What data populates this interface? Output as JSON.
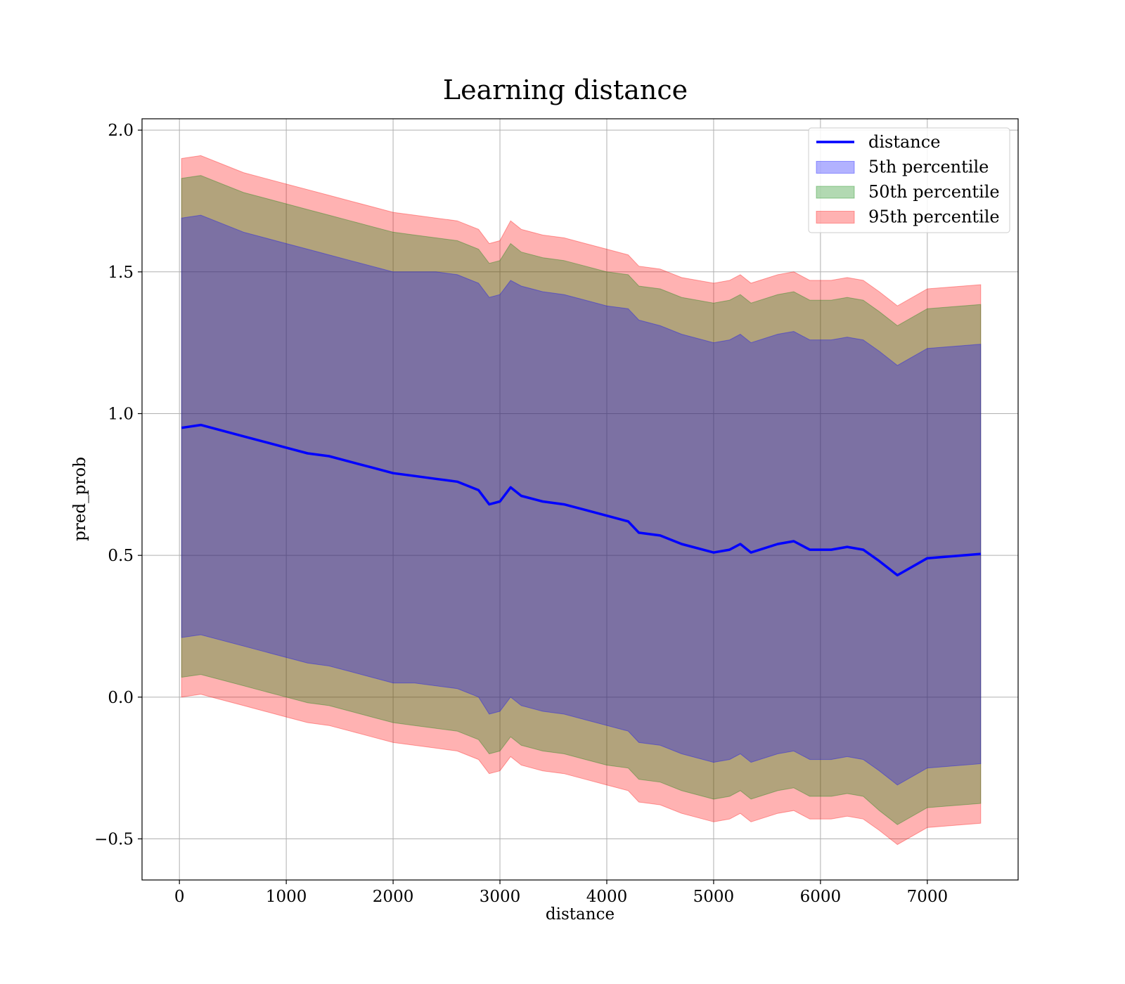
{
  "chart_data": {
    "type": "area",
    "title": "Learning distance",
    "xlabel": "distance",
    "ylabel": "pred_prob",
    "xlim": [
      -350,
      7850
    ],
    "ylim": [
      -0.645,
      2.04
    ],
    "xticks": [
      0,
      1000,
      2000,
      3000,
      4000,
      5000,
      6000,
      7000
    ],
    "yticks": [
      -0.5,
      0.0,
      0.5,
      1.0,
      1.5,
      2.0
    ],
    "ytick_labels": [
      "−0.5",
      "0.0",
      "0.5",
      "1.0",
      "1.5",
      "2.0"
    ],
    "grid": true,
    "legend_position": "top-right",
    "x": [
      20,
      200,
      400,
      600,
      800,
      1000,
      1200,
      1400,
      1600,
      1800,
      2000,
      2200,
      2400,
      2600,
      2800,
      2900,
      3000,
      3100,
      3200,
      3400,
      3600,
      3800,
      4000,
      4200,
      4300,
      4500,
      4700,
      5000,
      5150,
      5250,
      5350,
      5600,
      5750,
      5900,
      6100,
      6250,
      6400,
      6550,
      6720,
      7000,
      7500
    ],
    "series": [
      {
        "name": "distance",
        "kind": "line",
        "color": "#0000ff",
        "values": [
          0.95,
          0.96,
          0.94,
          0.92,
          0.9,
          0.88,
          0.86,
          0.85,
          0.83,
          0.81,
          0.79,
          0.78,
          0.77,
          0.76,
          0.73,
          0.68,
          0.69,
          0.74,
          0.71,
          0.69,
          0.68,
          0.66,
          0.64,
          0.62,
          0.58,
          0.57,
          0.54,
          0.51,
          0.52,
          0.54,
          0.51,
          0.54,
          0.55,
          0.52,
          0.52,
          0.53,
          0.52,
          0.48,
          0.43,
          0.49,
          0.505
        ]
      },
      {
        "name": "5th percentile",
        "kind": "band",
        "color": "#0000ff",
        "upper": [
          1.69,
          1.7,
          1.67,
          1.64,
          1.62,
          1.6,
          1.58,
          1.56,
          1.54,
          1.52,
          1.5,
          1.5,
          1.5,
          1.49,
          1.46,
          1.41,
          1.42,
          1.47,
          1.45,
          1.43,
          1.42,
          1.4,
          1.38,
          1.37,
          1.33,
          1.31,
          1.28,
          1.25,
          1.26,
          1.28,
          1.25,
          1.28,
          1.29,
          1.26,
          1.26,
          1.27,
          1.26,
          1.22,
          1.17,
          1.23,
          1.245
        ],
        "lower": [
          0.21,
          0.22,
          0.2,
          0.18,
          0.16,
          0.14,
          0.12,
          0.11,
          0.09,
          0.07,
          0.05,
          0.05,
          0.04,
          0.03,
          0.0,
          -0.06,
          -0.05,
          0.0,
          -0.03,
          -0.05,
          -0.06,
          -0.08,
          -0.1,
          -0.12,
          -0.16,
          -0.17,
          -0.2,
          -0.23,
          -0.22,
          -0.2,
          -0.23,
          -0.2,
          -0.19,
          -0.22,
          -0.22,
          -0.21,
          -0.22,
          -0.26,
          -0.31,
          -0.25,
          -0.235
        ]
      },
      {
        "name": "50th percentile",
        "kind": "band",
        "color": "#008000",
        "upper": [
          1.83,
          1.84,
          1.81,
          1.78,
          1.76,
          1.74,
          1.72,
          1.7,
          1.68,
          1.66,
          1.64,
          1.63,
          1.62,
          1.61,
          1.58,
          1.53,
          1.54,
          1.6,
          1.57,
          1.55,
          1.54,
          1.52,
          1.5,
          1.49,
          1.45,
          1.44,
          1.41,
          1.39,
          1.4,
          1.42,
          1.39,
          1.42,
          1.43,
          1.4,
          1.4,
          1.41,
          1.4,
          1.36,
          1.31,
          1.37,
          1.385
        ],
        "lower": [
          0.07,
          0.08,
          0.06,
          0.04,
          0.02,
          0.0,
          -0.02,
          -0.03,
          -0.05,
          -0.07,
          -0.09,
          -0.1,
          -0.11,
          -0.12,
          -0.15,
          -0.2,
          -0.19,
          -0.14,
          -0.17,
          -0.19,
          -0.2,
          -0.22,
          -0.24,
          -0.25,
          -0.29,
          -0.3,
          -0.33,
          -0.36,
          -0.35,
          -0.33,
          -0.36,
          -0.33,
          -0.32,
          -0.35,
          -0.35,
          -0.34,
          -0.35,
          -0.4,
          -0.45,
          -0.39,
          -0.375
        ]
      },
      {
        "name": "95th percentile",
        "kind": "band",
        "color": "#ff0000",
        "upper": [
          1.9,
          1.91,
          1.88,
          1.85,
          1.83,
          1.81,
          1.79,
          1.77,
          1.75,
          1.73,
          1.71,
          1.7,
          1.69,
          1.68,
          1.65,
          1.6,
          1.61,
          1.68,
          1.65,
          1.63,
          1.62,
          1.6,
          1.58,
          1.56,
          1.52,
          1.51,
          1.48,
          1.46,
          1.47,
          1.49,
          1.46,
          1.49,
          1.5,
          1.47,
          1.47,
          1.48,
          1.47,
          1.43,
          1.38,
          1.44,
          1.455
        ],
        "lower": [
          0.0,
          0.01,
          -0.01,
          -0.03,
          -0.05,
          -0.07,
          -0.09,
          -0.1,
          -0.12,
          -0.14,
          -0.16,
          -0.17,
          -0.18,
          -0.19,
          -0.22,
          -0.27,
          -0.26,
          -0.21,
          -0.24,
          -0.26,
          -0.27,
          -0.29,
          -0.31,
          -0.33,
          -0.37,
          -0.38,
          -0.41,
          -0.44,
          -0.43,
          -0.41,
          -0.44,
          -0.41,
          -0.4,
          -0.43,
          -0.43,
          -0.42,
          -0.43,
          -0.47,
          -0.52,
          -0.46,
          -0.445
        ]
      }
    ]
  }
}
